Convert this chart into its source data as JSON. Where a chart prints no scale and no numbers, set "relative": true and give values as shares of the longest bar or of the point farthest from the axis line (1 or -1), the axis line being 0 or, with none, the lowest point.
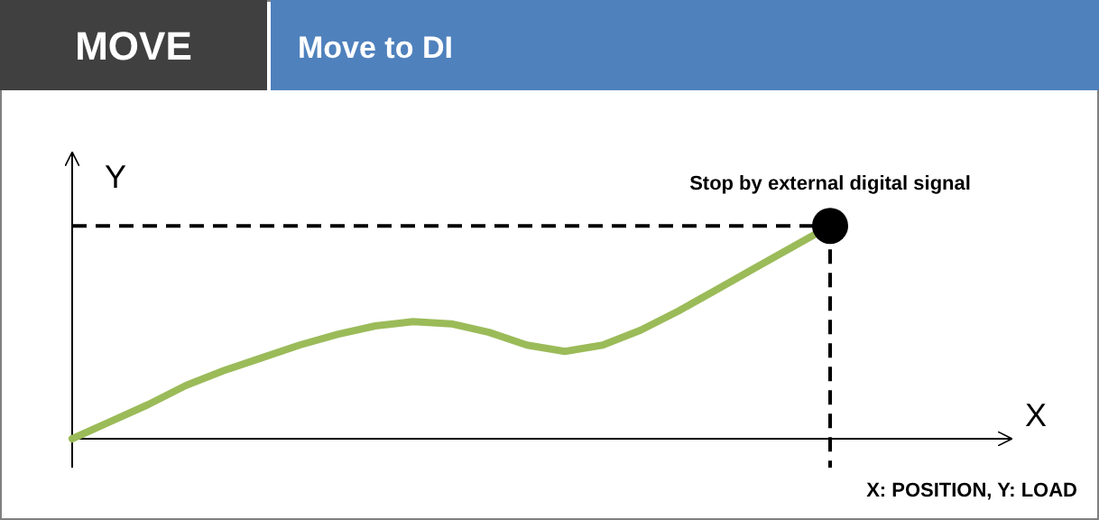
{
  "chart_data": {
    "type": "line",
    "title": "MOVE",
    "subtitle": "Move to DI",
    "ylabel": "Y",
    "relative": true,
    "categories": [
      null,
      null,
      null,
      null,
      null,
      null,
      null,
      null,
      null,
      null,
      null,
      null,
      null,
      null,
      null,
      null,
      null,
      null,
      null,
      null,
      null
    ],
    "series": [
      {
        "color": "#9bbb59",
        "values": [
          0,
          0.08,
          0.16,
          0.25,
          0.32,
          0.38,
          0.44,
          0.49,
          0.53,
          0.55,
          0.54,
          0.5,
          0.44,
          0.41,
          0.44,
          0.51,
          0.6,
          0.7,
          0.8,
          0.9,
          1
        ]
      }
    ],
    "marker": "none",
    "line_style": "solid",
    "ref_lines": [
      {
        "axis": "y",
        "value": 1,
        "color": "#000000",
        "line_style": "dashed"
      },
      {
        "axis": "x",
        "color": "#000000",
        "line_style": "dashed"
      }
    ],
    "annotations": [
      "Stop by external digital signal",
      "X: POSITION, Y: LOAD",
      "X"
    ]
  }
}
